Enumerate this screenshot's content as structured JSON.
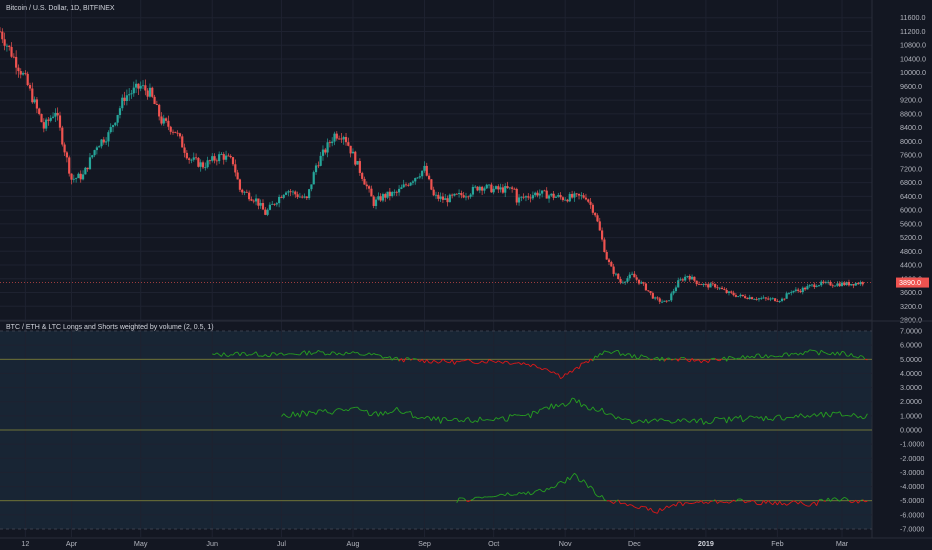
{
  "chart_data": [
    {
      "type": "candlestick",
      "title": "Bitcoin / U.S. Dollar, 1D, BITFINEX",
      "ylim": [
        2800,
        12000
      ],
      "y_ticks": [
        2800,
        3200,
        3600,
        4000,
        4400,
        4800,
        5200,
        5600,
        6000,
        6400,
        6800,
        7200,
        7600,
        8000,
        8400,
        8800,
        9200,
        9600,
        10000,
        10400,
        10800,
        11200,
        11600
      ],
      "last_price": 3890,
      "last_price_label": "3890.0",
      "path_x": [
        "Mar 1",
        "Mar 12",
        "Mar 20",
        "Mar 25",
        "Apr 1",
        "Apr 6",
        "Apr 12",
        "Apr 17",
        "Apr 24",
        "May 1",
        "May 5",
        "May 10",
        "May 16",
        "May 22",
        "May 28",
        "Jun 5",
        "Jun 10",
        "Jun 13",
        "Jun 20",
        "Jun 24",
        "Jun 29",
        "Jul 3",
        "Jul 12",
        "Jul 16",
        "Jul 24",
        "Jul 28",
        "Aug 1",
        "Aug 5",
        "Aug 10",
        "Aug 14",
        "Aug 20",
        "Aug 25",
        "Sep 1",
        "Sep 5",
        "Sep 10",
        "Sep 20",
        "Sep 25",
        "Oct 1",
        "Oct 10",
        "Oct 11",
        "Oct 20",
        "Oct 31",
        "Nov 10",
        "Nov 14",
        "Nov 19",
        "Nov 21",
        "Nov 25",
        "Nov 30",
        "Dec 5",
        "Dec 10",
        "Dec 15",
        "Dec 20",
        "Dec 24",
        "Dec 28",
        "Jan 1",
        "Jan 5",
        "Jan 10",
        "Jan 15",
        "Jan 28",
        "Feb 3",
        "Feb 7",
        "Feb 10",
        "Feb 18",
        "Feb 24",
        "Mar 3",
        "Mar 10"
      ],
      "path_y": [
        11200,
        9800,
        8400,
        8900,
        6900,
        7000,
        7900,
        8200,
        9300,
        9600,
        9400,
        8600,
        8300,
        7500,
        7300,
        7600,
        7400,
        6600,
        6300,
        5900,
        6300,
        6600,
        6300,
        7300,
        8200,
        8200,
        7600,
        7000,
        6200,
        6400,
        6500,
        6800,
        7200,
        6400,
        6300,
        6500,
        6700,
        6600,
        6600,
        6300,
        6500,
        6350,
        6400,
        5900,
        4600,
        4300,
        3900,
        4100,
        3800,
        3400,
        3300,
        3900,
        4100,
        3900,
        3800,
        3800,
        3600,
        3500,
        3400,
        3400,
        3650,
        3650,
        3850,
        3850,
        3850,
        3890
      ]
    },
    {
      "type": "line",
      "title": "BTC / ETH & LTC Longs and Shorts weighted by volume (2, 0.5, 1)",
      "ylim": [
        -7,
        7
      ],
      "y_ticks": [
        7,
        6,
        5,
        4,
        3,
        2,
        1,
        0,
        -1,
        -2,
        -3,
        -4,
        -5,
        -6,
        -7
      ],
      "y_tick_labels": [
        "7.0000",
        "6.0000",
        "5.0000",
        "4.0000",
        "3.0000",
        "2.0000",
        "1.0000",
        "0.0000",
        "-1.0000",
        "-2.0000",
        "-3.0000",
        "-4.0000",
        "-5.0000",
        "-6.0000",
        "-7.0000"
      ],
      "baselines": [
        5,
        0,
        -5
      ],
      "series": [
        {
          "color_above": "#26a020",
          "color_below": "#e01818",
          "baseline": 5,
          "x": [
            "Jun 1",
            "Jun 15",
            "Jul 1",
            "Jul 15",
            "Aug 1",
            "Aug 10",
            "Aug 20",
            "Sep 1",
            "Sep 15",
            "Oct 1",
            "Oct 15",
            "Oct 25",
            "Oct 30",
            "Nov 5",
            "Nov 10",
            "Nov 20",
            "Dec 1",
            "Dec 15",
            "Jan 1",
            "Jan 15",
            "Feb 1",
            "Feb 15",
            "Mar 1",
            "Mar 12"
          ],
          "values": [
            5.3,
            5.4,
            5.3,
            5.5,
            5.4,
            5.3,
            5.0,
            4.9,
            4.8,
            4.9,
            4.7,
            4.3,
            3.8,
            4.2,
            4.8,
            5.6,
            5.2,
            5.0,
            4.9,
            5.1,
            5.3,
            5.5,
            5.4,
            5.1
          ]
        },
        {
          "color_above": "#26a020",
          "color_below": "#e01818",
          "baseline": 0,
          "x": [
            "Jul 1",
            "Jul 15",
            "Aug 1",
            "Aug 10",
            "Aug 20",
            "Sep 1",
            "Sep 15",
            "Oct 1",
            "Oct 15",
            "Oct 25",
            "Nov 1",
            "Nov 5",
            "Nov 10",
            "Nov 20",
            "Dec 1",
            "Dec 15",
            "Jan 1",
            "Jan 15",
            "Feb 1",
            "Feb 15",
            "Mar 1",
            "Mar 12"
          ],
          "values": [
            1.0,
            1.2,
            1.5,
            1.1,
            1.4,
            0.8,
            0.6,
            0.8,
            0.9,
            1.6,
            1.9,
            2.2,
            1.6,
            1.2,
            0.5,
            0.7,
            0.6,
            0.8,
            0.9,
            1.0,
            1.1,
            1.0
          ]
        },
        {
          "color_above": "#26a020",
          "color_below": "#e01818",
          "baseline": -5,
          "x": [
            "Sep 15",
            "Sep 25",
            "Oct 5",
            "Oct 15",
            "Oct 25",
            "Nov 1",
            "Nov 5",
            "Nov 10",
            "Nov 15",
            "Nov 20",
            "Nov 25",
            "Dec 1",
            "Dec 10",
            "Dec 20",
            "Jan 1",
            "Jan 15",
            "Feb 1",
            "Feb 10",
            "Feb 15",
            "Feb 22",
            "Mar 1",
            "Mar 12"
          ],
          "values": [
            -5.0,
            -4.8,
            -4.6,
            -4.5,
            -4.2,
            -3.6,
            -3.2,
            -3.8,
            -4.6,
            -5.0,
            -5.1,
            -5.3,
            -5.8,
            -5.2,
            -5.1,
            -5.0,
            -5.2,
            -5.1,
            -5.4,
            -4.9,
            -4.9,
            -5.1
          ]
        }
      ]
    }
  ],
  "x_axis": {
    "labels": [
      "12",
      "Apr",
      "May",
      "Jun",
      "Jul",
      "Aug",
      "Sep",
      "Oct",
      "Nov",
      "Dec",
      "2019",
      "Feb",
      "Mar"
    ],
    "dates": [
      "Mar 12",
      "Apr 1",
      "May 1",
      "Jun 1",
      "Jul 1",
      "Aug 1",
      "Sep 1",
      "Oct 1",
      "Nov 1",
      "Dec 1",
      "Jan 1",
      "Feb 1",
      "Mar 1"
    ],
    "bold_label": "2019",
    "range": [
      "Mar 1",
      "Mar 14"
    ]
  },
  "colors": {
    "background": "#131722",
    "lower_panel_fill": "#182534",
    "up_candle": "#26a69a",
    "down_candle": "#ef5350",
    "grid": "#1e2230",
    "price_tag": "#ef5350"
  }
}
